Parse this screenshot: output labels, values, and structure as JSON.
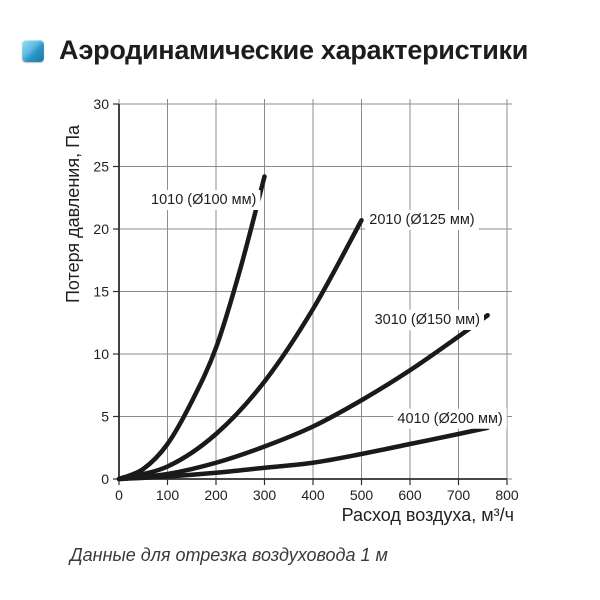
{
  "header": {
    "title": "Аэродинамические характеристики",
    "accent_color": "#2e97c6"
  },
  "caption": {
    "text": "Данные для отрезка воздуховода 1 м"
  },
  "chart_data": {
    "type": "line",
    "title": "Аэродинамические характеристики",
    "xlabel": "Расход воздуха, м³/ч",
    "ylabel": "Потеря давления, Па",
    "xlim": [
      0,
      800
    ],
    "ylim": [
      0,
      30
    ],
    "x_ticks": [
      0,
      100,
      200,
      300,
      400,
      500,
      600,
      700,
      800
    ],
    "y_ticks": [
      0,
      5,
      10,
      15,
      20,
      25,
      30
    ],
    "grid": true,
    "legend_position": "inline-labels",
    "grid_color": "#8c8c8c",
    "axis_color": "#2e2e2e",
    "line_color": "#1a1a1a",
    "series": [
      {
        "name": "1010 (Ø100 мм)",
        "points": [
          [
            0,
            0
          ],
          [
            50,
            0.8
          ],
          [
            100,
            2.8
          ],
          [
            150,
            6.2
          ],
          [
            200,
            10.5
          ],
          [
            250,
            16.8
          ],
          [
            300,
            24.2
          ]
        ],
        "label_anchor": [
          66,
          22.4
        ],
        "label_align": "start"
      },
      {
        "name": "2010 (Ø125 мм)",
        "points": [
          [
            0,
            0
          ],
          [
            100,
            1.0
          ],
          [
            200,
            3.6
          ],
          [
            300,
            7.8
          ],
          [
            400,
            13.6
          ],
          [
            500,
            20.7
          ]
        ],
        "label_anchor": [
          516,
          20.8
        ],
        "label_align": "start"
      },
      {
        "name": "3010 (Ø150 мм)",
        "points": [
          [
            0,
            0
          ],
          [
            100,
            0.4
          ],
          [
            200,
            1.3
          ],
          [
            300,
            2.6
          ],
          [
            400,
            4.2
          ],
          [
            500,
            6.3
          ],
          [
            600,
            8.7
          ],
          [
            700,
            11.4
          ],
          [
            760,
            13.1
          ]
        ],
        "label_anchor": [
          527,
          12.8
        ],
        "label_align": "start"
      },
      {
        "name": "4010 (Ø200 мм)",
        "points": [
          [
            0,
            0
          ],
          [
            100,
            0.2
          ],
          [
            200,
            0.5
          ],
          [
            300,
            0.9
          ],
          [
            400,
            1.3
          ],
          [
            500,
            2.0
          ],
          [
            600,
            2.8
          ],
          [
            700,
            3.6
          ],
          [
            760,
            4.1
          ]
        ],
        "label_anchor": [
          574,
          4.9
        ],
        "label_align": "start"
      }
    ]
  }
}
